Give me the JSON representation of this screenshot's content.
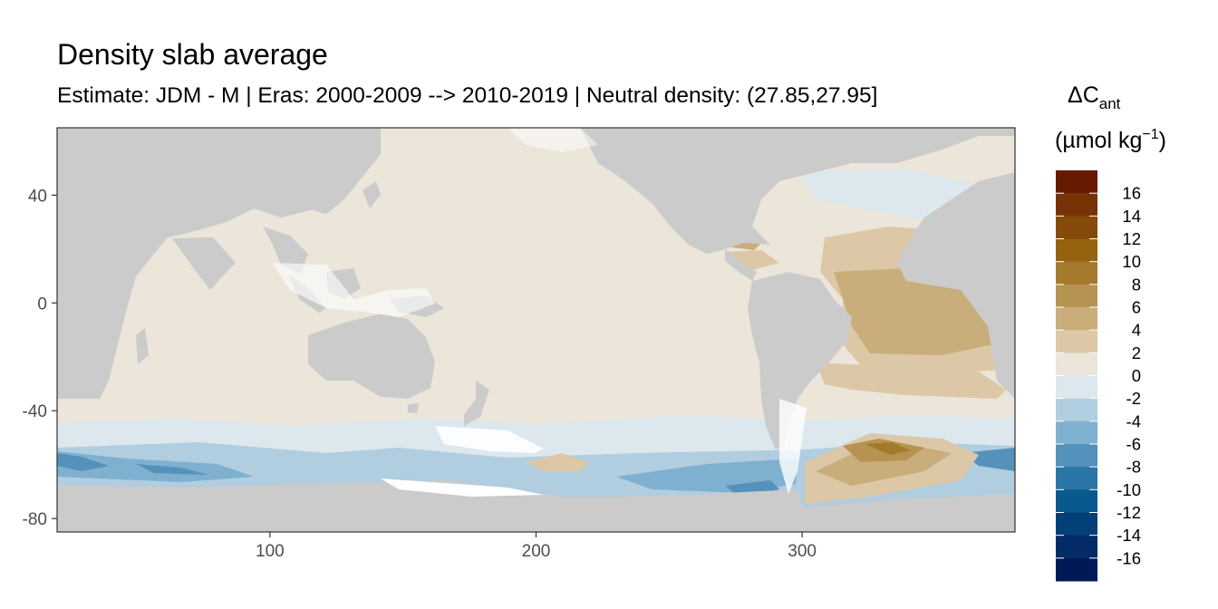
{
  "chart_data": {
    "type": "heatmap",
    "title": "Density slab average",
    "subtitle": "Estimate: JDM - M | Eras: 2000-2009 --> 2010-2019 | Neutral density: (27.85,27.95]",
    "xlabel": "",
    "ylabel": "",
    "xlim": [
      20,
      380
    ],
    "ylim": [
      -85,
      65
    ],
    "x_ticks": [
      100,
      200,
      300
    ],
    "y_ticks": [
      40,
      0,
      -40,
      -80
    ],
    "grid": false,
    "legend": {
      "title_symbol": "ΔC",
      "title_subscript": "ant",
      "title_unit": "(µmol kg",
      "title_unit_exp": "−1",
      "title_unit_close": ")",
      "placement": "right",
      "labels": [
        "16",
        "14",
        "12",
        "10",
        "8",
        "6",
        "4",
        "2",
        "0",
        "-2",
        "-4",
        "-6",
        "-8",
        "-10",
        "-12",
        "-14",
        "-16"
      ],
      "bins": [
        {
          "range": [
            16,
            18
          ],
          "color": "#661a00"
        },
        {
          "range": [
            14,
            16
          ],
          "color": "#773305"
        },
        {
          "range": [
            12,
            14
          ],
          "color": "#864a08"
        },
        {
          "range": [
            10,
            12
          ],
          "color": "#95620f"
        },
        {
          "range": [
            8,
            10
          ],
          "color": "#a67a2d"
        },
        {
          "range": [
            6,
            8
          ],
          "color": "#b69350"
        },
        {
          "range": [
            4,
            6
          ],
          "color": "#c9ad7b"
        },
        {
          "range": [
            2,
            4
          ],
          "color": "#dcc8a6"
        },
        {
          "range": [
            0,
            2
          ],
          "color": "#ebe5da"
        },
        {
          "range": [
            -2,
            0
          ],
          "color": "#dce7ee"
        },
        {
          "range": [
            -4,
            -2
          ],
          "color": "#b1cde0"
        },
        {
          "range": [
            -6,
            -4
          ],
          "color": "#7fb0cf"
        },
        {
          "range": [
            -8,
            -6
          ],
          "color": "#5492bc"
        },
        {
          "range": [
            -10,
            -8
          ],
          "color": "#2a75a5"
        },
        {
          "range": [
            -12,
            -10
          ],
          "color": "#09598e"
        },
        {
          "range": [
            -14,
            -12
          ],
          "color": "#033f79"
        },
        {
          "range": [
            -16,
            -14
          ],
          "color": "#022b67"
        },
        {
          "range": [
            -18,
            -16
          ],
          "color": "#011957"
        }
      ]
    },
    "colors": {
      "land": "#cbcbcb",
      "missing": "#ffffff",
      "panel_border": "#333333"
    }
  }
}
